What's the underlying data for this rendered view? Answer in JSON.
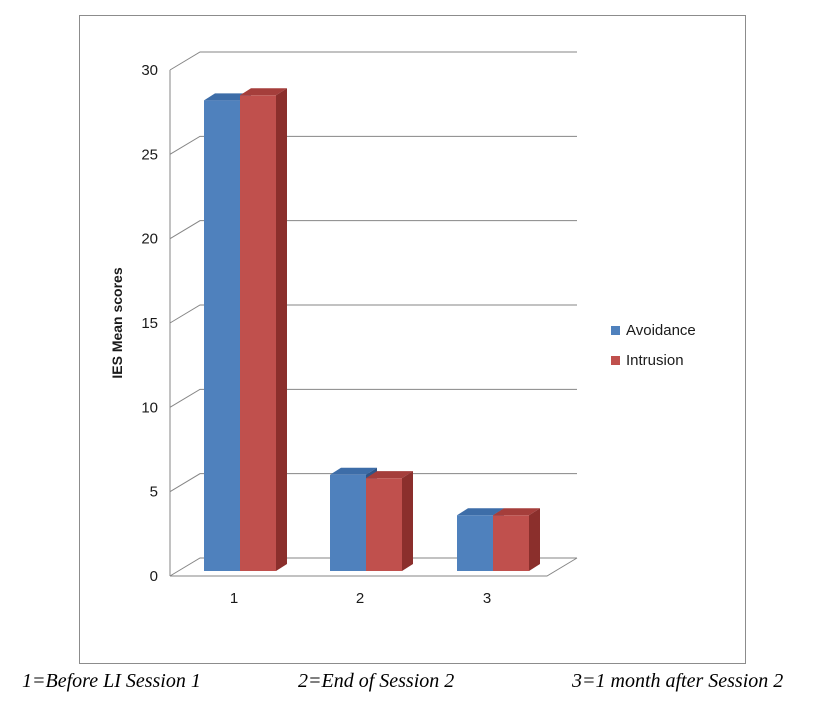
{
  "chart_data": {
    "type": "bar",
    "categories": [
      "1",
      "2",
      "3"
    ],
    "series": [
      {
        "name": "Avoidance",
        "values": [
          28.2,
          6.0,
          3.6
        ],
        "color": "#4f81bd",
        "top_color": "#3d6da8",
        "side_color": "#2e5588"
      },
      {
        "name": "Intrusion",
        "values": [
          28.5,
          5.8,
          3.6
        ],
        "color": "#c0504d",
        "top_color": "#a53e3b",
        "side_color": "#8b2f2c"
      }
    ],
    "ylabel": "IES Mean scores",
    "xlabel": "",
    "ylim": [
      0,
      30
    ],
    "yticks": [
      "0",
      "5",
      "10",
      "15",
      "20",
      "25",
      "30"
    ],
    "grid": true,
    "legend_position": "right"
  },
  "captions": {
    "c1": "1=Before LI Session 1",
    "c2": "2=End of Session 2",
    "c3": "3=1 month after Session 2"
  }
}
